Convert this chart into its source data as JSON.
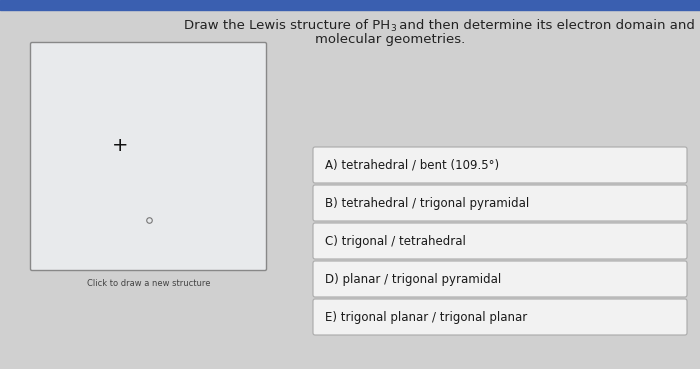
{
  "background_color": "#d0d0d0",
  "top_bar_color": "#3a5fb0",
  "draw_box_bg": "#e8eaec",
  "draw_box_border": "#888888",
  "answer_bg": "#f2f2f2",
  "answer_border": "#aaaaaa",
  "plus_symbol": "+",
  "click_text": "Click to draw a new structure",
  "answers": [
    "A) tetrahedral / bent (109.5°)",
    "B) tetrahedral / trigonal pyramidal",
    "C) trigonal / tetrahedral",
    "D) planar / trigonal pyramidal",
    "E) trigonal planar / trigonal planar"
  ],
  "title_fontsize": 9.5,
  "answer_fontsize": 8.5,
  "click_fontsize": 6,
  "plus_fontsize": 14,
  "circle_fontsize": 6
}
